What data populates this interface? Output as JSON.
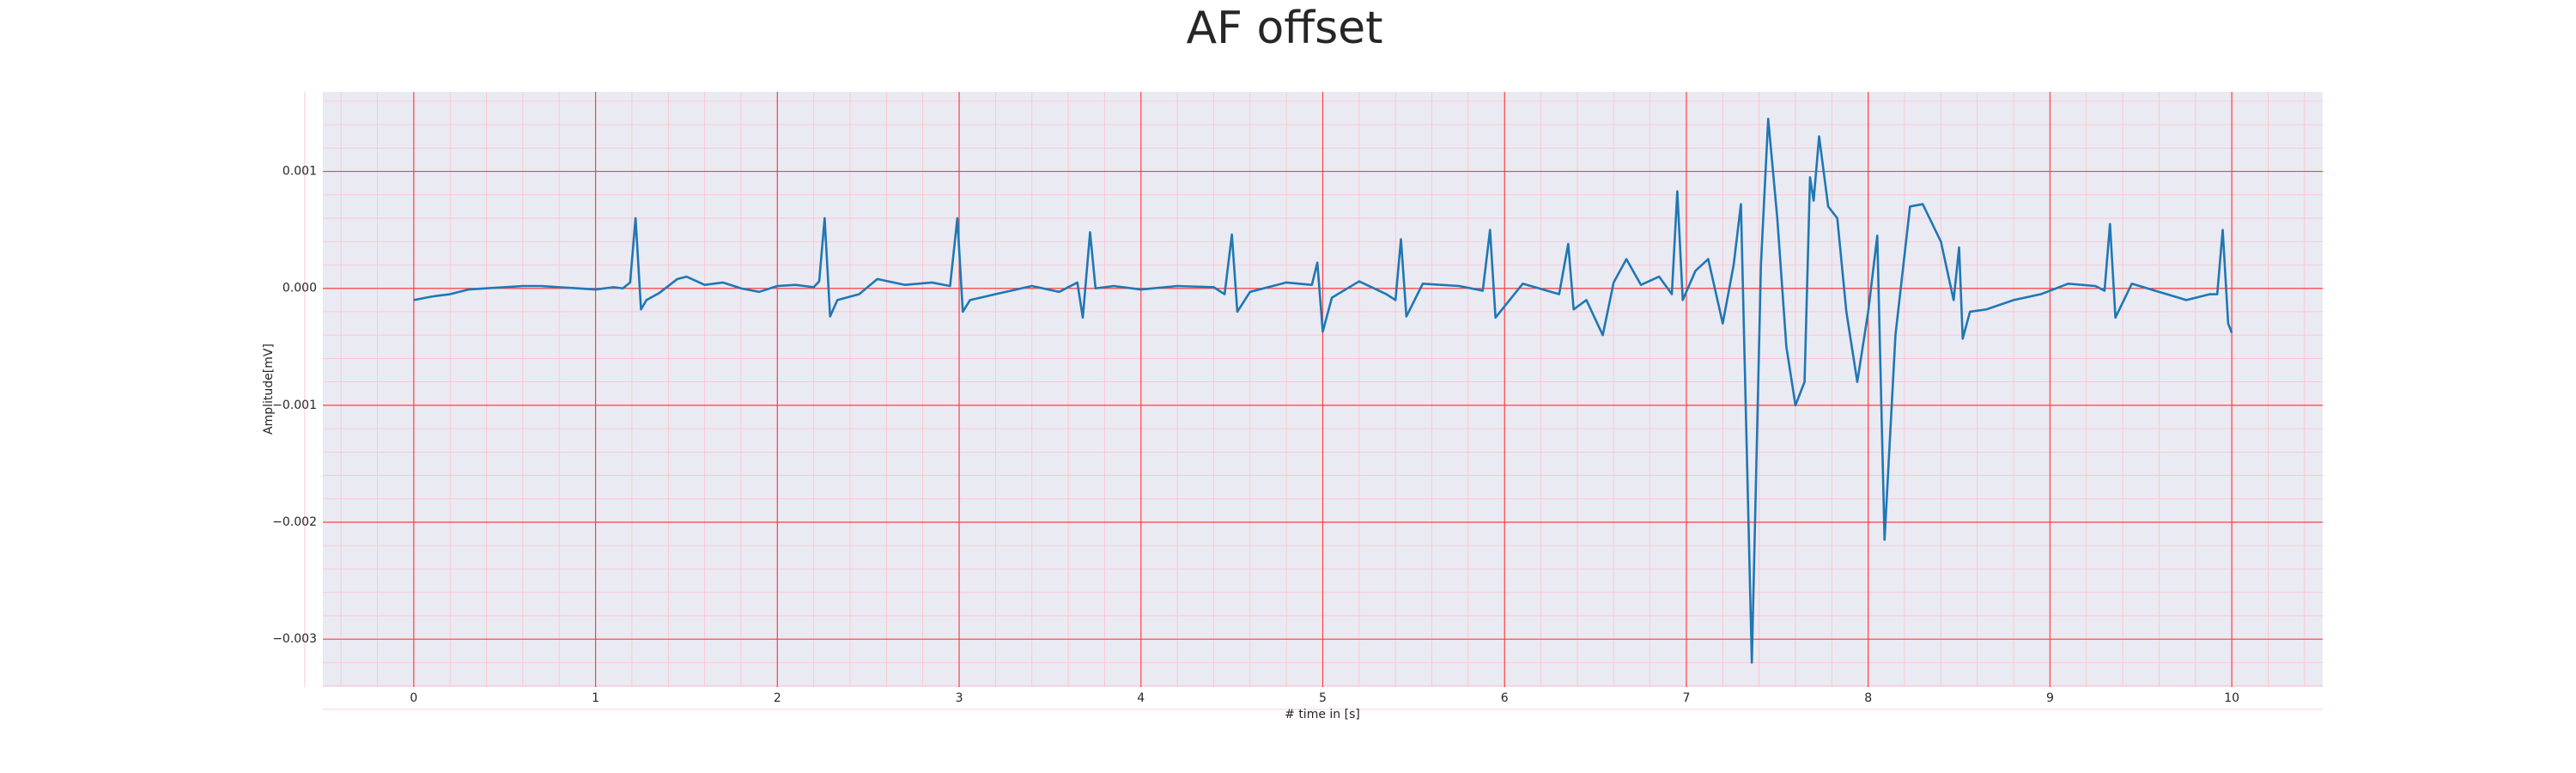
{
  "chart_data": {
    "type": "line",
    "title": "AF offset",
    "xlabel": "# time in [s]",
    "ylabel": "Amplitude[mV]",
    "xlim": [
      -0.5,
      10.5
    ],
    "ylim": [
      -0.00341,
      0.00168
    ],
    "xticks": [
      0,
      1,
      2,
      3,
      4,
      5,
      6,
      7,
      8,
      9,
      10
    ],
    "yticks": [
      {
        "value": -0.003,
        "label": "−0.003"
      },
      {
        "value": -0.002,
        "label": "−0.002"
      },
      {
        "value": -0.001,
        "label": "−0.001"
      },
      {
        "value": 0,
        "label": "0.000"
      },
      {
        "value": 0.001,
        "label": "0.001"
      }
    ],
    "grid": true,
    "minor_grid": true,
    "grid_color": "#ff4040",
    "minor_grid_color": "#ffc0cb",
    "background": "#eaeaf2",
    "x": [
      0,
      0.1,
      0.2,
      0.3,
      0.4,
      0.5,
      0.6,
      0.7,
      0.8,
      0.9,
      1.0,
      1.1,
      1.15,
      1.19,
      1.22,
      1.25,
      1.28,
      1.35,
      1.45,
      1.5,
      1.6,
      1.7,
      1.8,
      1.9,
      2.0,
      2.1,
      2.2,
      2.23,
      2.26,
      2.29,
      2.33,
      2.45,
      2.55,
      2.7,
      2.85,
      2.95,
      2.99,
      3.02,
      3.06,
      3.2,
      3.4,
      3.55,
      3.65,
      3.68,
      3.72,
      3.75,
      3.85,
      4.0,
      4.2,
      4.4,
      4.46,
      4.5,
      4.53,
      4.6,
      4.8,
      4.94,
      4.97,
      5.0,
      5.05,
      5.2,
      5.35,
      5.4,
      5.43,
      5.46,
      5.55,
      5.75,
      5.88,
      5.92,
      5.95,
      6.1,
      6.3,
      6.35,
      6.38,
      6.45,
      6.54,
      6.6,
      6.67,
      6.75,
      6.85,
      6.92,
      6.95,
      6.98,
      7.05,
      7.12,
      7.2,
      7.26,
      7.3,
      7.36,
      7.41,
      7.45,
      7.5,
      7.55,
      7.6,
      7.65,
      7.68,
      7.7,
      7.73,
      7.78,
      7.83,
      7.88,
      7.94,
      8.0,
      8.05,
      8.09,
      8.15,
      8.23,
      8.3,
      8.4,
      8.47,
      8.5,
      8.52,
      8.56,
      8.65,
      8.8,
      8.95,
      9.1,
      9.25,
      9.3,
      9.33,
      9.36,
      9.45,
      9.6,
      9.75,
      9.88,
      9.92,
      9.95,
      9.98,
      10.0
    ],
    "series": [
      {
        "color": "#1f77b4",
        "values": [
          -0.0001,
          -7e-05,
          -5e-05,
          -1e-05,
          0,
          1e-05,
          2e-05,
          2e-05,
          1e-05,
          0,
          -1e-05,
          1e-05,
          0,
          5e-05,
          0.0006,
          -0.00018,
          -0.0001,
          -4e-05,
          8e-05,
          0.0001,
          3e-05,
          5e-05,
          0,
          -3e-05,
          2e-05,
          3e-05,
          1e-05,
          6e-05,
          0.0006,
          -0.00024,
          -0.0001,
          -5e-05,
          8e-05,
          3e-05,
          5e-05,
          2e-05,
          0.0006,
          -0.0002,
          -0.0001,
          -5e-05,
          2e-05,
          -3e-05,
          5e-05,
          -0.00025,
          0.00048,
          0,
          2e-05,
          -1e-05,
          2e-05,
          1e-05,
          -5e-05,
          0.00046,
          -0.0002,
          -3e-05,
          5e-05,
          3e-05,
          0.00022,
          -0.00037,
          -8e-05,
          6e-05,
          -5e-05,
          -0.0001,
          0.00042,
          -0.00024,
          4e-05,
          2e-05,
          -2e-05,
          0.0005,
          -0.00025,
          4e-05,
          -5e-05,
          0.00038,
          -0.00018,
          -0.0001,
          -0.0004,
          5e-05,
          0.00025,
          3e-05,
          0.0001,
          -5e-05,
          0.00083,
          -0.0001,
          0.00015,
          0.00025,
          -0.0003,
          0.0002,
          0.00072,
          -0.0032,
          0.0002,
          0.00145,
          0.0006,
          -0.0005,
          -0.001,
          -0.0008,
          0.00095,
          0.00075,
          0.0013,
          0.0007,
          0.0006,
          -0.0002,
          -0.0008,
          -0.0002,
          0.00045,
          -0.00215,
          -0.0004,
          0.0007,
          0.00072,
          0.0004,
          -0.0001,
          0.00035,
          -0.00043,
          -0.0002,
          -0.00018,
          -0.0001,
          -5e-05,
          4e-05,
          2e-05,
          -2e-05,
          0.00055,
          -0.00025,
          4e-05,
          -3e-05,
          -0.0001,
          -5e-05,
          -5e-05,
          0.0005,
          -0.0003,
          -0.00038
        ]
      }
    ]
  }
}
